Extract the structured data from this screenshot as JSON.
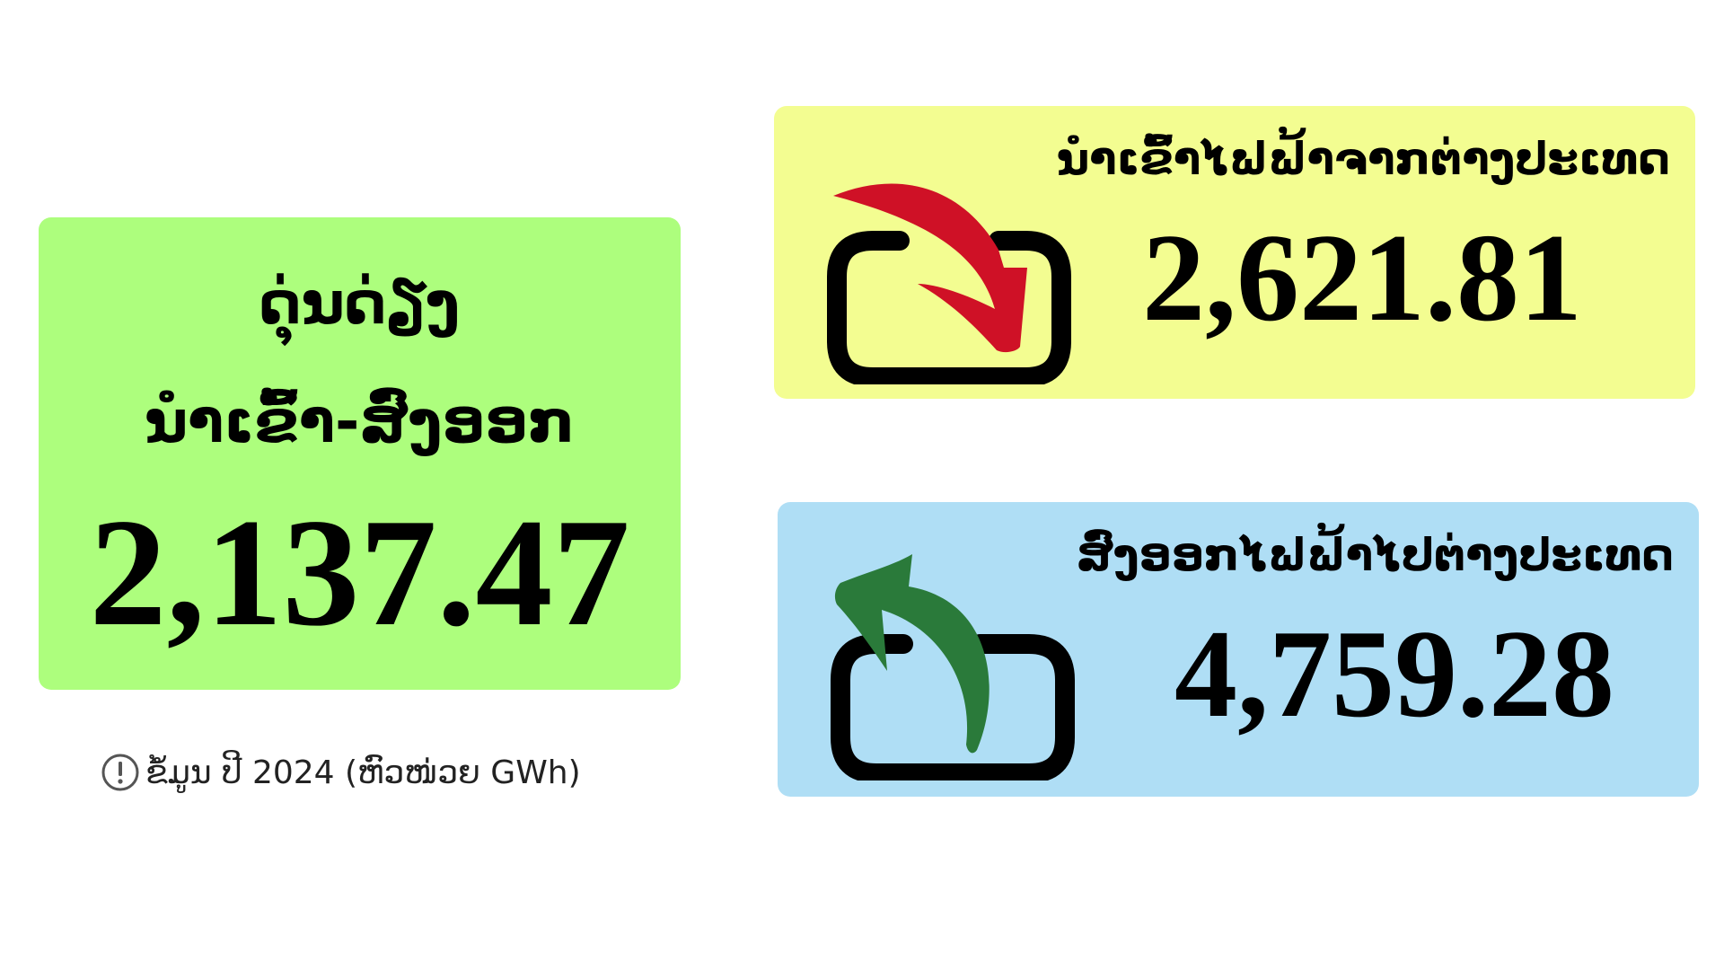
{
  "balance": {
    "title_line1": "ດຸ່ນດ່ຽງ",
    "title_line2": "ນຳເຂົ້າ-ສົ່ງອອກ",
    "value": "2,137.47"
  },
  "note": {
    "text": "ຂໍ້ມູນ ປີ 2024 (ຫົວໜ່ວຍ GWh)",
    "icon": "exclamation-circle-icon"
  },
  "import": {
    "label": "ນຳເຂົ້າໄຟຟ້າຈາກຕ່າງປະເທດ",
    "value": "2,621.81",
    "icon": "import-arrow-icon",
    "arrow_color": "#cf1126"
  },
  "export": {
    "label": "ສົ່ງອອກໄຟຟ້າໄປຕ່າງປະເທດ",
    "value": "4,759.28",
    "icon": "export-arrow-icon",
    "arrow_color": "#2a7a3a"
  },
  "colors": {
    "balance_bg": "#adfe7d",
    "import_bg": "#f3fd91",
    "export_bg": "#afdef5"
  }
}
